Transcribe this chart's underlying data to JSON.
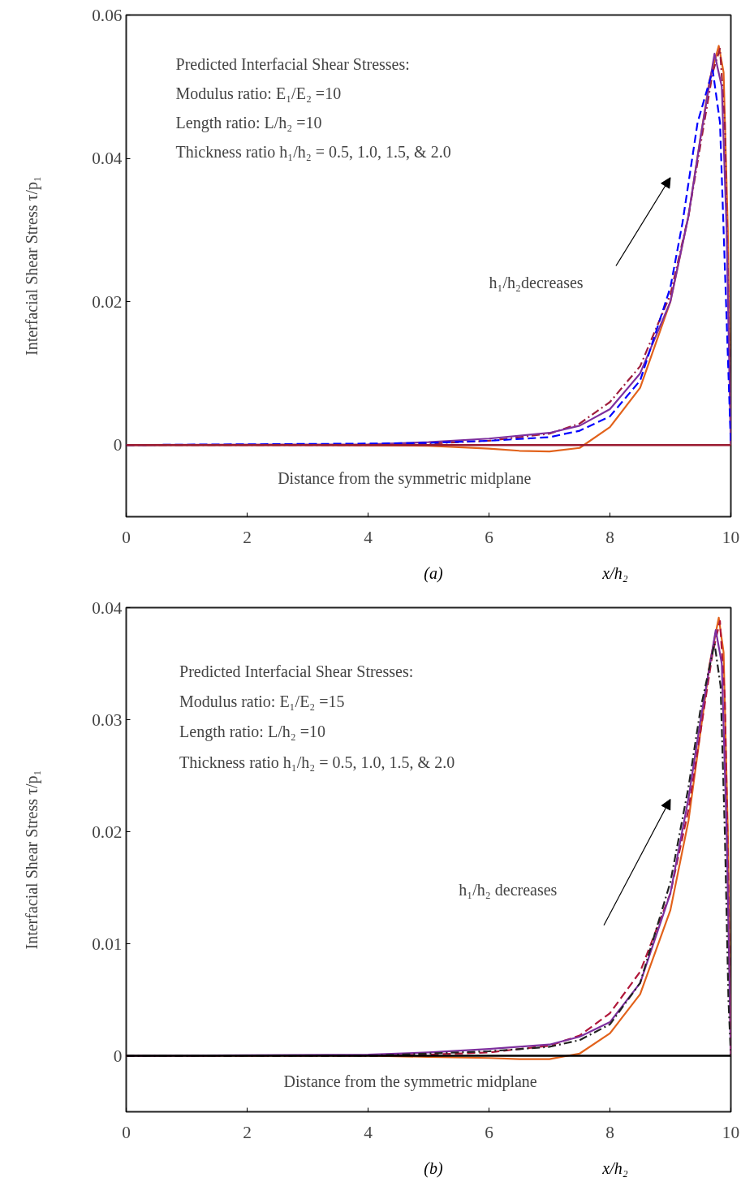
{
  "chart_data": [
    {
      "type": "line",
      "xlabel": "x/h₂",
      "ylabel": "Interfacial Shear Stress τ/p₁",
      "xlim": [
        0,
        10
      ],
      "xticks": [
        0,
        2,
        4,
        6,
        8,
        10
      ],
      "ylim": [
        -0.01,
        0.06
      ],
      "yticks": [
        0,
        0.02,
        0.04,
        0.06
      ],
      "grid": false,
      "legend": false,
      "annotations": [
        "Predicted Interfacial Shear Stresses:",
        "Modulus ratio: E₁/E₂ =10",
        "Length ratio: L/h₂ =10",
        "Thickness ratio h₁/h₂ = 0.5, 1.0, 1.5, & 2.0",
        "h₁/h₂decreases",
        "Distance from the symmetric midplane",
        "(a)"
      ],
      "ref_lines": [
        {
          "axis": "y",
          "value": 0,
          "color": "#9b1b30"
        }
      ],
      "series": [
        {
          "color": "#e2621b",
          "line_style": "solid",
          "x": [
            0,
            3,
            5,
            6,
            6.5,
            7,
            7.5,
            8,
            8.5,
            9,
            9.3,
            9.5,
            9.65,
            9.8,
            9.88,
            9.95,
            10
          ],
          "values": [
            0,
            0,
            -0.0001,
            -0.0005,
            -0.0008,
            -0.0009,
            -0.0004,
            0.0025,
            0.008,
            0.02,
            0.032,
            0.043,
            0.051,
            0.0557,
            0.052,
            0.03,
            0
          ]
        },
        {
          "color": "#a01e3c",
          "line_style": "dashdot",
          "x": [
            0,
            4,
            5,
            6,
            7,
            7.5,
            8,
            8.5,
            9,
            9.3,
            9.5,
            9.7,
            9.82,
            9.9,
            9.96,
            10
          ],
          "values": [
            0,
            0,
            0.0002,
            0.0006,
            0.0016,
            0.003,
            0.006,
            0.011,
            0.021,
            0.032,
            0.042,
            0.052,
            0.0553,
            0.045,
            0.02,
            0
          ]
        },
        {
          "color": "#7e2f9e",
          "line_style": "solid",
          "x": [
            0,
            4,
            5,
            6,
            7,
            7.5,
            8,
            8.5,
            9,
            9.3,
            9.5,
            9.73,
            9.85,
            9.93,
            10
          ],
          "values": [
            0,
            0.0001,
            0.0004,
            0.0009,
            0.0017,
            0.0027,
            0.005,
            0.01,
            0.02,
            0.032,
            0.043,
            0.0546,
            0.05,
            0.03,
            0
          ]
        },
        {
          "color": "#0000ff",
          "line_style": "dashed",
          "x": [
            0,
            4,
            5,
            6,
            7,
            7.5,
            8,
            8.5,
            9,
            9.2,
            9.45,
            9.7,
            9.82,
            9.9,
            9.96,
            10
          ],
          "values": [
            0,
            0.0002,
            0.0003,
            0.0006,
            0.0011,
            0.002,
            0.004,
            0.009,
            0.022,
            0.031,
            0.045,
            0.0523,
            0.045,
            0.025,
            0.01,
            0
          ]
        }
      ]
    },
    {
      "type": "line",
      "xlabel": "x/h₂",
      "ylabel": "Interfacial Shear Stress τ/p₁",
      "xlim": [
        0,
        10
      ],
      "xticks": [
        0,
        2,
        4,
        6,
        8,
        10
      ],
      "ylim": [
        -0.005,
        0.04
      ],
      "yticks": [
        0,
        0.01,
        0.02,
        0.03,
        0.04
      ],
      "grid": false,
      "legend": false,
      "annotations": [
        "Predicted Interfacial Shear Stresses:",
        "Modulus ratio: E₁/E₂ =15",
        "Length ratio: L/h₂ =10",
        "Thickness ratio h₁/h₂ = 0.5, 1.0, 1.5, & 2.0",
        "h₁/h₂ decreases",
        "Distance from the symmetric midplane",
        "(b)"
      ],
      "ref_lines": [
        {
          "axis": "y",
          "value": 0,
          "color": "#000000"
        }
      ],
      "series": [
        {
          "color": "#e2621b",
          "line_style": "solid",
          "x": [
            0,
            4,
            5,
            6,
            6.5,
            7,
            7.5,
            8,
            8.5,
            9,
            9.3,
            9.5,
            9.65,
            9.8,
            9.88,
            9.95,
            10
          ],
          "values": [
            0,
            0,
            -0.0001,
            -0.0002,
            -0.0003,
            -0.0003,
            0.0002,
            0.002,
            0.0055,
            0.013,
            0.021,
            0.029,
            0.035,
            0.0391,
            0.036,
            0.02,
            0
          ]
        },
        {
          "color": "#b0173a",
          "line_style": "dashed",
          "x": [
            0,
            4,
            5,
            6,
            7,
            7.5,
            8,
            8.5,
            9,
            9.3,
            9.5,
            9.7,
            9.82,
            9.9,
            9.96,
            10
          ],
          "values": [
            0,
            0,
            0.0001,
            0.0003,
            0.0009,
            0.0018,
            0.0038,
            0.0075,
            0.0145,
            0.022,
            0.029,
            0.036,
            0.0388,
            0.032,
            0.015,
            0
          ]
        },
        {
          "color": "#7e2f9e",
          "line_style": "solid",
          "x": [
            0,
            4,
            5,
            6,
            7,
            7.5,
            8,
            8.5,
            9,
            9.3,
            9.5,
            9.75,
            9.85,
            9.93,
            10
          ],
          "values": [
            0,
            0.0001,
            0.0003,
            0.0006,
            0.001,
            0.0017,
            0.003,
            0.0065,
            0.0145,
            0.023,
            0.03,
            0.038,
            0.035,
            0.02,
            0
          ]
        },
        {
          "color": "#222222",
          "line_style": "dashdot",
          "x": [
            0,
            4,
            5,
            6,
            7,
            7.5,
            8,
            8.5,
            9,
            9.3,
            9.5,
            9.73,
            9.83,
            9.9,
            9.96,
            10
          ],
          "values": [
            0,
            0,
            0.0002,
            0.0004,
            0.0008,
            0.0014,
            0.0028,
            0.0065,
            0.0155,
            0.024,
            0.031,
            0.0368,
            0.033,
            0.02,
            0.005,
            0
          ]
        }
      ]
    }
  ]
}
